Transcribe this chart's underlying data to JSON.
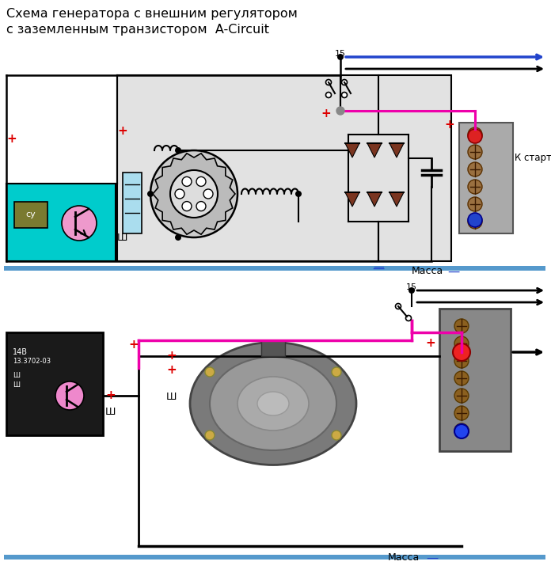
{
  "title_line1": "Схема генератора с внешним регулятором",
  "title_line2": "с заземленным транзистором  A-Circuit",
  "label_massa": "Масса",
  "label_k_starteru": "К стартеру",
  "label_15": "15",
  "label_sh": "Ш",
  "label_sy": "су",
  "bg_color": "#ffffff",
  "gray_box_fill": "#e0e0e0",
  "reg_box_fill": "#00cccc",
  "wire_pink": "#ee00aa",
  "wire_blue": "#2244cc",
  "wire_black": "#000000",
  "plus_color": "#dd0000",
  "diode_color": "#7a3520",
  "fig_width": 6.96,
  "fig_height": 7.19,
  "dpi": 100
}
